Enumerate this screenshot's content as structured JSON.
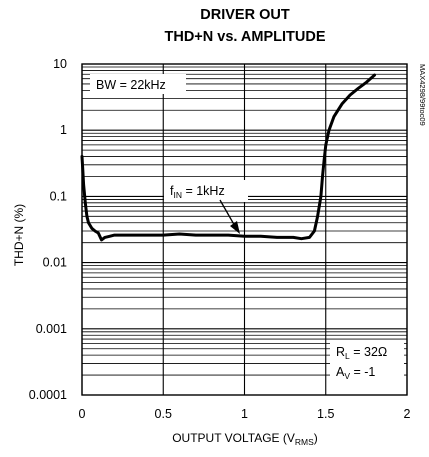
{
  "chart_data": {
    "type": "line",
    "title_line1": "DRIVER OUT",
    "title_line2": "THD+N vs. AMPLITUDE",
    "xlabel_main": "OUTPUT VOLTAGE (V",
    "xlabel_sub": "RMS",
    "xlabel_close": ")",
    "ylabel": "THD+N (%)",
    "xlim": [
      0,
      2
    ],
    "ylim": [
      0.0001,
      10
    ],
    "y_scale": "log",
    "grid": true,
    "x_ticks": [
      0,
      0.5,
      1,
      1.5,
      2
    ],
    "x_tick_labels": [
      "0",
      "0.5",
      "1",
      "1.5",
      "2"
    ],
    "y_ticks": [
      0.0001,
      0.001,
      0.01,
      0.1,
      1,
      10
    ],
    "y_tick_labels": [
      "0.0001",
      "0.001",
      "0.01",
      "0.1",
      "1",
      "10"
    ],
    "series": [
      {
        "x": [
          0.0,
          0.005,
          0.01,
          0.02,
          0.03,
          0.04,
          0.06,
          0.08,
          0.1,
          0.12,
          0.14,
          0.17,
          0.2,
          0.3,
          0.4,
          0.5,
          0.6,
          0.7,
          0.8,
          0.9,
          1.0,
          1.1,
          1.2,
          1.3,
          1.35,
          1.4,
          1.43,
          1.45,
          1.47,
          1.48,
          1.49,
          1.5,
          1.52,
          1.55,
          1.6,
          1.65,
          1.7,
          1.75,
          1.8
        ],
        "y": [
          0.4,
          0.25,
          0.15,
          0.08,
          0.05,
          0.04,
          0.033,
          0.03,
          0.028,
          0.022,
          0.024,
          0.025,
          0.026,
          0.026,
          0.026,
          0.026,
          0.027,
          0.026,
          0.026,
          0.026,
          0.025,
          0.025,
          0.024,
          0.024,
          0.023,
          0.024,
          0.03,
          0.05,
          0.1,
          0.2,
          0.35,
          0.6,
          1.0,
          1.6,
          2.5,
          3.4,
          4.3,
          5.3,
          6.8
        ]
      }
    ],
    "annotations": {
      "bw": "BW = 22kHz",
      "fin_main": "f",
      "fin_sub": "IN",
      "fin_rest": " = 1kHz",
      "rl_main": "R",
      "rl_sub": "L",
      "rl_rest": " = 32Ω",
      "av_main": "A",
      "av_sub": "V",
      "av_rest": " = -1",
      "part_number": "MAX4298/99toc09"
    }
  }
}
